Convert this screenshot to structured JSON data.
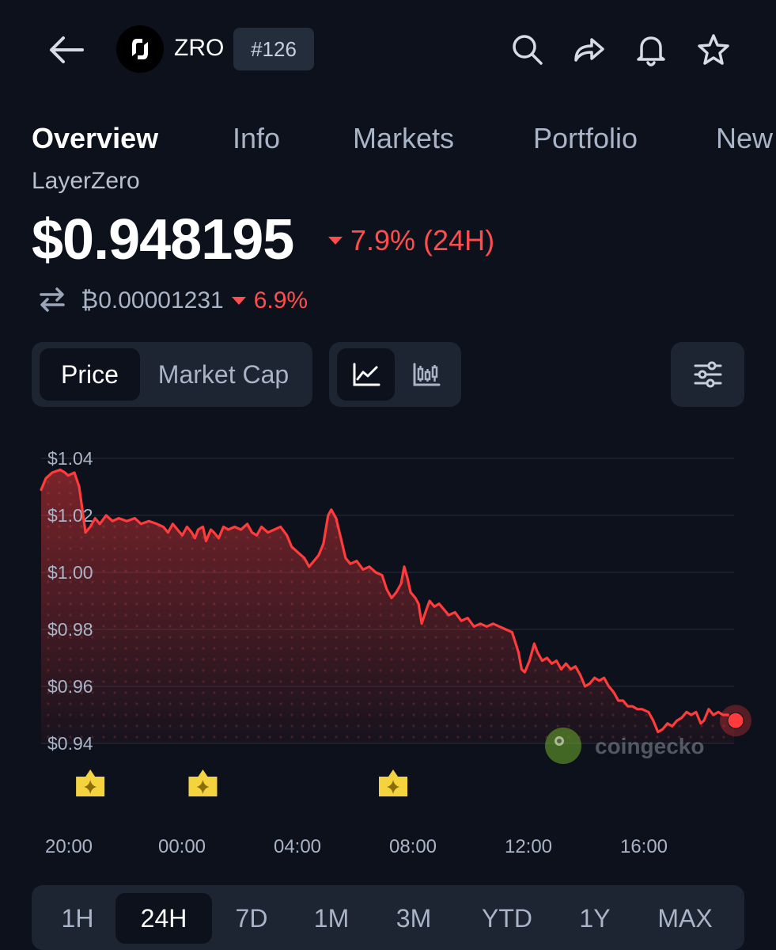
{
  "header": {
    "symbol": "ZRO",
    "rank": "#126",
    "icons": [
      "back-arrow-icon",
      "search-icon",
      "share-icon",
      "bell-icon",
      "star-icon"
    ]
  },
  "tabs": [
    {
      "label": "Overview",
      "active": true
    },
    {
      "label": "Info",
      "active": false
    },
    {
      "label": "Markets",
      "active": false
    },
    {
      "label": "Portfolio",
      "active": false
    },
    {
      "label": "New",
      "active": false
    }
  ],
  "coin": {
    "name": "LayerZero",
    "price": "$0.948195",
    "change_24h": "7.9% (24H)",
    "btc_price": "₿0.00001231",
    "btc_change": "6.9%"
  },
  "chart_type_toggle": {
    "options": [
      "Price",
      "Market Cap"
    ],
    "selected": "Price"
  },
  "chart_style_toggle": {
    "options": [
      "line-chart-icon",
      "candlestick-icon"
    ],
    "selected": "line-chart-icon"
  },
  "filter_icon": "sliders-icon",
  "watermark": "coingecko",
  "colors": {
    "background": "#0d111c",
    "line": "#ff3b3b",
    "negative": "#ff4d4d",
    "panel": "#1d2432",
    "event_marker": "#f5d33f"
  },
  "time_ranges": [
    {
      "label": "1H",
      "active": false
    },
    {
      "label": "24H",
      "active": true
    },
    {
      "label": "7D",
      "active": false
    },
    {
      "label": "1M",
      "active": false
    },
    {
      "label": "3M",
      "active": false
    },
    {
      "label": "YTD",
      "active": false
    },
    {
      "label": "1Y",
      "active": false
    },
    {
      "label": "MAX",
      "active": false
    }
  ],
  "chart_data": {
    "type": "area",
    "title": "",
    "xlabel": "",
    "ylabel": "",
    "ylim": [
      0.94,
      1.04
    ],
    "y_ticks": [
      "$1.04",
      "$1.02",
      "$1.00",
      "$0.98",
      "$0.96",
      "$0.94"
    ],
    "y_tick_values": [
      1.04,
      1.02,
      1.0,
      0.98,
      0.96,
      0.94
    ],
    "x_range_hours": [
      19.25,
      25.35
    ],
    "x_ticks": [
      "20:00",
      "00:00",
      "04:00",
      "08:00",
      "12:00",
      "16:00"
    ],
    "x_tick_hours": [
      20,
      24,
      28,
      32,
      36,
      40
    ],
    "event_marker_hours": [
      20.7,
      24.25,
      30.25
    ],
    "series": [
      {
        "points": [
          [
            19.15,
            1.029
          ],
          [
            19.3,
            1.033
          ],
          [
            19.5,
            1.035
          ],
          [
            19.75,
            1.036
          ],
          [
            19.9,
            1.035
          ],
          [
            20.0,
            1.034
          ],
          [
            20.2,
            1.035
          ],
          [
            20.35,
            1.03
          ],
          [
            20.45,
            1.022
          ],
          [
            20.55,
            1.014
          ],
          [
            20.7,
            1.016
          ],
          [
            20.85,
            1.019
          ],
          [
            21.0,
            1.017
          ],
          [
            21.2,
            1.02
          ],
          [
            21.4,
            1.018
          ],
          [
            21.6,
            1.019
          ],
          [
            21.85,
            1.018
          ],
          [
            22.1,
            1.019
          ],
          [
            22.3,
            1.017
          ],
          [
            22.55,
            1.018
          ],
          [
            22.8,
            1.017
          ],
          [
            23.0,
            1.016
          ],
          [
            23.15,
            1.014
          ],
          [
            23.3,
            1.017
          ],
          [
            23.45,
            1.015
          ],
          [
            23.6,
            1.013
          ],
          [
            23.75,
            1.016
          ],
          [
            23.9,
            1.014
          ],
          [
            24.0,
            1.012
          ],
          [
            24.1,
            1.015
          ],
          [
            24.25,
            1.016
          ],
          [
            24.35,
            1.011
          ],
          [
            24.5,
            1.015
          ],
          [
            24.6,
            1.014
          ],
          [
            24.75,
            1.012
          ],
          [
            24.9,
            1.016
          ],
          [
            25.05,
            1.015
          ],
          [
            25.25,
            1.016
          ],
          [
            25.45,
            1.015
          ],
          [
            25.65,
            1.017
          ],
          [
            25.8,
            1.014
          ],
          [
            25.95,
            1.013
          ],
          [
            26.1,
            1.016
          ],
          [
            26.3,
            1.014
          ],
          [
            26.5,
            1.015
          ],
          [
            26.7,
            1.016
          ],
          [
            26.9,
            1.013
          ],
          [
            27.05,
            1.009
          ],
          [
            27.25,
            1.007
          ],
          [
            27.45,
            1.005
          ],
          [
            27.6,
            1.002
          ],
          [
            27.75,
            1.004
          ],
          [
            27.9,
            1.006
          ],
          [
            28.05,
            1.01
          ],
          [
            28.2,
            1.02
          ],
          [
            28.3,
            1.022
          ],
          [
            28.45,
            1.019
          ],
          [
            28.6,
            1.012
          ],
          [
            28.75,
            1.005
          ],
          [
            28.9,
            1.003
          ],
          [
            29.1,
            1.004
          ],
          [
            29.3,
            1.001
          ],
          [
            29.5,
            1.002
          ],
          [
            29.7,
            1.0
          ],
          [
            29.9,
            0.999
          ],
          [
            30.05,
            0.994
          ],
          [
            30.2,
            0.991
          ],
          [
            30.35,
            0.993
          ],
          [
            30.5,
            0.996
          ],
          [
            30.6,
            1.002
          ],
          [
            30.7,
            0.998
          ],
          [
            30.8,
            0.993
          ],
          [
            30.95,
            0.991
          ],
          [
            31.05,
            0.989
          ],
          [
            31.15,
            0.982
          ],
          [
            31.3,
            0.987
          ],
          [
            31.4,
            0.99
          ],
          [
            31.55,
            0.988
          ],
          [
            31.7,
            0.989
          ],
          [
            31.85,
            0.987
          ],
          [
            32.0,
            0.985
          ],
          [
            32.2,
            0.986
          ],
          [
            32.4,
            0.983
          ],
          [
            32.6,
            0.984
          ],
          [
            32.8,
            0.981
          ],
          [
            33.0,
            0.982
          ],
          [
            33.2,
            0.981
          ],
          [
            33.4,
            0.982
          ],
          [
            33.6,
            0.981
          ],
          [
            33.8,
            0.98
          ],
          [
            34.0,
            0.979
          ],
          [
            34.2,
            0.972
          ],
          [
            34.3,
            0.966
          ],
          [
            34.4,
            0.965
          ],
          [
            34.55,
            0.969
          ],
          [
            34.7,
            0.975
          ],
          [
            34.8,
            0.972
          ],
          [
            34.95,
            0.969
          ],
          [
            35.1,
            0.97
          ],
          [
            35.25,
            0.968
          ],
          [
            35.4,
            0.969
          ],
          [
            35.55,
            0.966
          ],
          [
            35.7,
            0.968
          ],
          [
            35.85,
            0.966
          ],
          [
            36.0,
            0.967
          ],
          [
            36.15,
            0.964
          ],
          [
            36.3,
            0.96
          ],
          [
            36.45,
            0.961
          ],
          [
            36.6,
            0.963
          ],
          [
            36.75,
            0.962
          ],
          [
            36.9,
            0.963
          ],
          [
            37.05,
            0.96
          ],
          [
            37.2,
            0.958
          ],
          [
            37.35,
            0.955
          ],
          [
            37.5,
            0.955
          ],
          [
            37.65,
            0.953
          ],
          [
            37.8,
            0.953
          ],
          [
            37.95,
            0.952
          ],
          [
            38.1,
            0.952
          ],
          [
            38.3,
            0.951
          ],
          [
            38.45,
            0.948
          ],
          [
            38.6,
            0.944
          ],
          [
            38.75,
            0.945
          ],
          [
            38.9,
            0.947
          ],
          [
            39.05,
            0.946
          ],
          [
            39.2,
            0.948
          ],
          [
            39.35,
            0.949
          ],
          [
            39.5,
            0.951
          ],
          [
            39.65,
            0.95
          ],
          [
            39.8,
            0.951
          ],
          [
            39.95,
            0.947
          ],
          [
            40.05,
            0.948
          ],
          [
            40.2,
            0.952
          ],
          [
            40.35,
            0.95
          ],
          [
            40.5,
            0.951
          ],
          [
            40.65,
            0.95
          ],
          [
            40.8,
            0.95
          ],
          [
            41.0,
            0.948
          ]
        ]
      }
    ]
  }
}
